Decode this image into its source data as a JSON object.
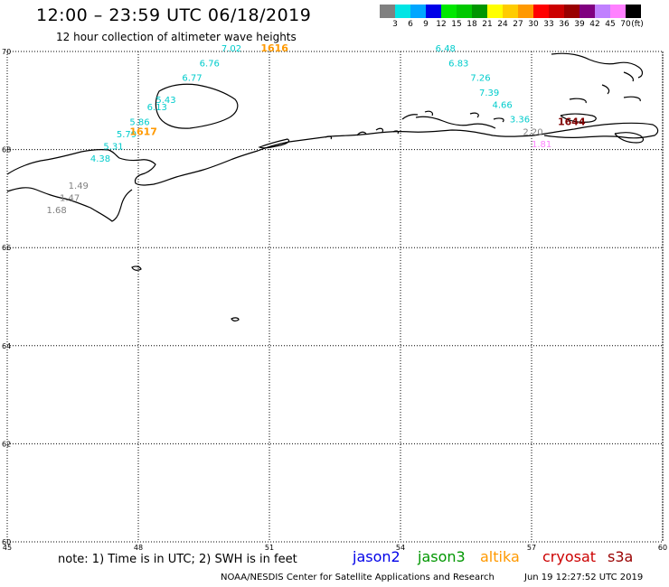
{
  "title": "12:00 – 23:59 UTC 06/18/2019",
  "subtitle": "12 hour collection of altimeter wave heights",
  "color_scale": {
    "colors": [
      "#808080",
      "#00e5e5",
      "#00a6ff",
      "#0000e8",
      "#00e800",
      "#00c800",
      "#009600",
      "#ffff00",
      "#ffcc00",
      "#ff9900",
      "#ff0000",
      "#cc0000",
      "#990000",
      "#800080",
      "#c080ff",
      "#ff80ff",
      "#000000"
    ],
    "labels": [
      "3",
      "6",
      "9",
      "12",
      "15",
      "18",
      "21",
      "24",
      "27",
      "30",
      "33",
      "36",
      "39",
      "42",
      "45",
      "70",
      "(ft)"
    ]
  },
  "map": {
    "lat_labels": [
      "70",
      "68",
      "66",
      "64",
      "62",
      "60"
    ],
    "lon_labels": [
      "45",
      "48",
      "51",
      "54",
      "57",
      "60"
    ],
    "times": [
      {
        "text": "1616",
        "color": "#ff9900",
        "lon": 50.8,
        "lat": 70.0
      },
      {
        "text": "1617",
        "color": "#ff9900",
        "lon": 47.8,
        "lat": 68.3
      },
      {
        "text": "1644",
        "color": "#800000",
        "lon": 57.6,
        "lat": 68.5
      }
    ],
    "swh": [
      {
        "text": "7.02",
        "color": "#00cccc",
        "lon": 49.9,
        "lat": 70.0
      },
      {
        "text": "6.76",
        "color": "#00cccc",
        "lon": 49.4,
        "lat": 69.7
      },
      {
        "text": "6.77",
        "color": "#00cccc",
        "lon": 49.0,
        "lat": 69.4
      },
      {
        "text": "5.43",
        "color": "#00cccc",
        "lon": 48.4,
        "lat": 68.95
      },
      {
        "text": "6.13",
        "color": "#00cccc",
        "lon": 48.2,
        "lat": 68.8
      },
      {
        "text": "5.86",
        "color": "#00cccc",
        "lon": 47.8,
        "lat": 68.5
      },
      {
        "text": "5.79",
        "color": "#00cccc",
        "lon": 47.5,
        "lat": 68.25
      },
      {
        "text": "5.31",
        "color": "#00cccc",
        "lon": 47.2,
        "lat": 68.0
      },
      {
        "text": "4.38",
        "color": "#00cccc",
        "lon": 46.9,
        "lat": 67.75
      },
      {
        "text": "1.49",
        "color": "#808080",
        "lon": 46.4,
        "lat": 67.2
      },
      {
        "text": "1.47",
        "color": "#808080",
        "lon": 46.2,
        "lat": 66.95
      },
      {
        "text": "1.68",
        "color": "#808080",
        "lon": 45.9,
        "lat": 66.7
      },
      {
        "text": "6.48",
        "color": "#00cccc",
        "lon": 54.8,
        "lat": 70.0
      },
      {
        "text": "6.83",
        "color": "#00cccc",
        "lon": 55.1,
        "lat": 69.7
      },
      {
        "text": "7.26",
        "color": "#00cccc",
        "lon": 55.6,
        "lat": 69.4
      },
      {
        "text": "7.39",
        "color": "#00cccc",
        "lon": 55.8,
        "lat": 69.1
      },
      {
        "text": "4.66",
        "color": "#00cccc",
        "lon": 56.1,
        "lat": 68.85
      },
      {
        "text": "3.36",
        "color": "#00cccc",
        "lon": 56.5,
        "lat": 68.55
      },
      {
        "text": "2.20",
        "color": "#808080",
        "lon": 56.8,
        "lat": 68.3
      },
      {
        "text": "1.81",
        "color": "#ff80ff",
        "lon": 57.0,
        "lat": 68.05
      }
    ]
  },
  "note": "note: 1) Time is in UTC; 2) SWH is in feet",
  "missions": [
    {
      "name": "jason2",
      "color": "#0000e8"
    },
    {
      "name": "jason3",
      "color": "#009600"
    },
    {
      "name": "altika",
      "color": "#ff9900"
    },
    {
      "name": "cryosat",
      "color": "#cc0000"
    },
    {
      "name": "s3a",
      "color": "#990000"
    }
  ],
  "credit": "NOAA/NESDIS Center for Satellite Applications and Research",
  "timestamp": "Jun 19 12:27:52 UTC 2019"
}
